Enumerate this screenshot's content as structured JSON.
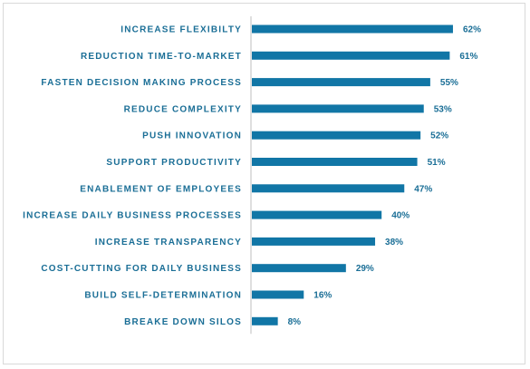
{
  "chart_data": {
    "type": "bar",
    "orientation": "horizontal",
    "categories": [
      "INCREASE FLEXIBILTY",
      "REDUCTION TIME-TO-MARKET",
      "FASTEN DECISION MAKING PROCESS",
      "REDUCE COMPLEXITY",
      "PUSH INNOVATION",
      "SUPPORT PRODUCTIVITY",
      "ENABLEMENT OF EMPLOYEES",
      "INCREASE DAILY BUSINESS PROCESSES",
      "INCREASE TRANSPARENCY",
      "COST-CUTTING FOR DAILY BUSINESS",
      "BUILD SELF-DETERMINATION",
      "BREAKE DOWN SILOS"
    ],
    "values": [
      62,
      61,
      55,
      53,
      52,
      51,
      47,
      40,
      38,
      29,
      16,
      8
    ],
    "value_labels": [
      "62%",
      "61%",
      "55%",
      "53%",
      "52%",
      "51%",
      "47%",
      "40%",
      "38%",
      "29%",
      "16%",
      "8%"
    ],
    "unit": "%",
    "title": "",
    "xlabel": "",
    "ylabel": "",
    "xlim": [
      0,
      100
    ],
    "grid": false,
    "legend": "none",
    "colors": {
      "bar": "#1176a6",
      "text": "#1a6e96",
      "axis": "#bfbfbf",
      "border": "#d9d9d9"
    }
  }
}
